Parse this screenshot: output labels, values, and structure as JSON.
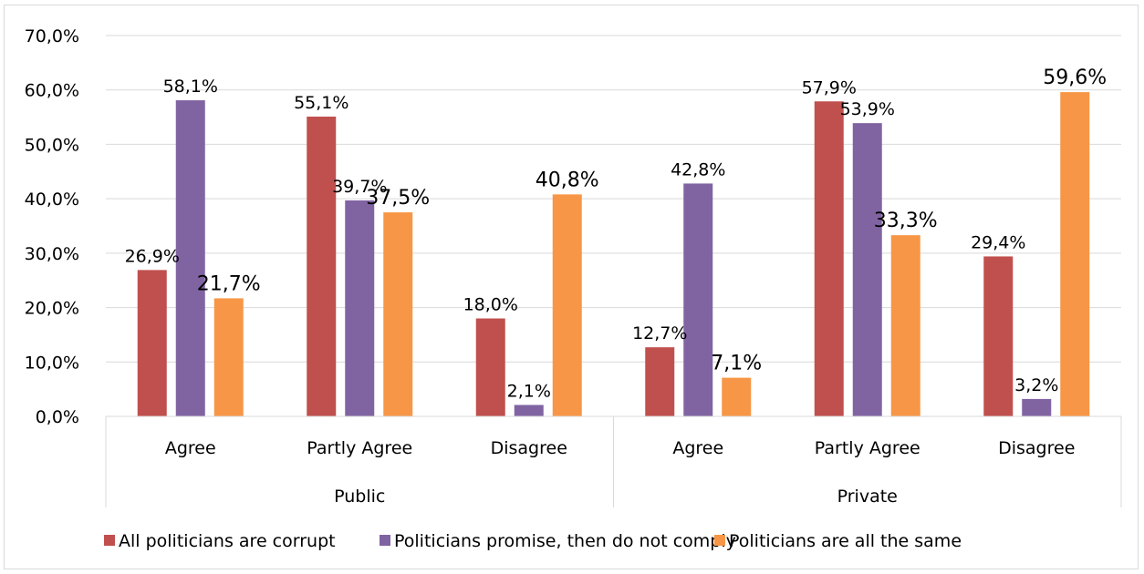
{
  "chart_data": {
    "type": "bar",
    "ylim": [
      0,
      70
    ],
    "y_ticks": [
      "0,0%",
      "10,0%",
      "20,0%",
      "30,0%",
      "40,0%",
      "50,0%",
      "60,0%",
      "70,0%"
    ],
    "grid": true,
    "legend_position": "bottom",
    "groups": [
      {
        "label": "Public",
        "categories": [
          "Agree",
          "Partly Agree",
          "Disagree"
        ]
      },
      {
        "label": "Private",
        "categories": [
          "Agree",
          "Partly Agree",
          "Disagree"
        ]
      }
    ],
    "series": [
      {
        "name": "All politicians are corrupt",
        "color": "#c0504d",
        "values": [
          26.9,
          55.1,
          18.0,
          12.7,
          57.9,
          29.4
        ],
        "labels": [
          "26,9%",
          "55,1%",
          "18,0%",
          "12,7%",
          "57,9%",
          "29,4%"
        ]
      },
      {
        "name": "Politicians promise, then do not comply",
        "color": "#8064a2",
        "values": [
          58.1,
          39.7,
          2.1,
          42.8,
          53.9,
          3.2
        ],
        "labels": [
          "58,1%",
          "39,7%",
          "2,1%",
          "42,8%",
          "53,9%",
          "3,2%"
        ]
      },
      {
        "name": "Politicians are all the same",
        "color": "#f79646",
        "values": [
          21.7,
          37.5,
          40.8,
          7.1,
          33.3,
          59.6
        ],
        "labels": [
          "21,7%",
          "37,5%",
          "40,8%",
          "7,1%",
          "33,3%",
          "59,6%"
        ]
      }
    ]
  }
}
